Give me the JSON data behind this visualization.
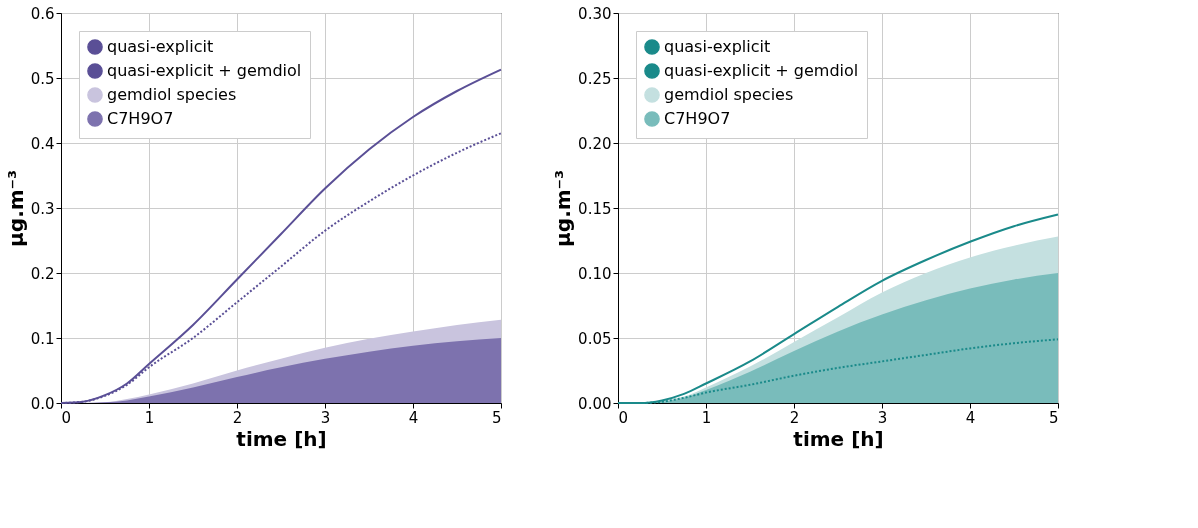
{
  "chart_data": [
    {
      "type": "line",
      "xlabel": "time [h]",
      "ylabel": "μg.m⁻³",
      "xlim": [
        0,
        5
      ],
      "xticks": [
        0,
        1,
        2,
        3,
        4,
        5
      ],
      "ylim": [
        0,
        0.6
      ],
      "yticks": [
        {
          "value": 0,
          "label": "0.0"
        },
        0.1,
        0.2,
        0.3,
        0.4,
        0.5,
        0.6
      ],
      "grid": true,
      "legend": "top left",
      "x": [
        0,
        0.25,
        0.5,
        0.75,
        1,
        1.5,
        2,
        2.5,
        3,
        3.5,
        4,
        4.5,
        5
      ],
      "series": [
        {
          "name": "quasi-explicit",
          "line_style": "dotted",
          "color": "#5a4f96",
          "values": [
            0,
            0.002,
            0.011,
            0.028,
            0.055,
            0.1,
            0.155,
            0.21,
            0.265,
            0.31,
            0.35,
            0.385,
            0.415
          ]
        },
        {
          "name": "quasi-explicit + gemdiol",
          "line_style": "solid",
          "color": "#5a4f96",
          "values": [
            0,
            0.002,
            0.012,
            0.03,
            0.06,
            0.12,
            0.19,
            0.26,
            0.33,
            0.39,
            0.44,
            0.48,
            0.513
          ]
        },
        {
          "name": "gemdiol species",
          "type": "area",
          "color": "#c9c4de",
          "values": [
            0,
            0,
            0.001,
            0.006,
            0.013,
            0.03,
            0.05,
            0.068,
            0.085,
            0.099,
            0.11,
            0.12,
            0.128
          ]
        },
        {
          "name": "C7H9O7",
          "type": "area",
          "color": "#7d72ae",
          "values": [
            0,
            0,
            0.001,
            0.004,
            0.01,
            0.024,
            0.04,
            0.055,
            0.068,
            0.079,
            0.088,
            0.095,
            0.1
          ]
        }
      ]
    },
    {
      "type": "line",
      "xlabel": "time [h]",
      "ylabel": "μg.m⁻³",
      "xlim": [
        0,
        5
      ],
      "xticks": [
        0,
        1,
        2,
        3,
        4,
        5
      ],
      "ylim": [
        0,
        0.3
      ],
      "yticks": [
        {
          "value": 0,
          "label": "0.00"
        },
        0.05,
        {
          "value": 0.1,
          "label": "0.10"
        },
        0.15,
        {
          "value": 0.2,
          "label": "0.20"
        },
        0.25,
        {
          "value": 0.3,
          "label": "0.30"
        }
      ],
      "grid": true,
      "legend": "top left",
      "x": [
        0,
        0.25,
        0.5,
        0.75,
        1,
        1.5,
        2,
        2.5,
        3,
        3.5,
        4,
        4.5,
        5
      ],
      "series": [
        {
          "name": "quasi-explicit",
          "line_style": "dotted",
          "color": "#1a8a8a",
          "values": [
            0,
            0,
            0.001,
            0.004,
            0.008,
            0.014,
            0.021,
            0.027,
            0.032,
            0.037,
            0.042,
            0.046,
            0.049
          ]
        },
        {
          "name": "quasi-explicit + gemdiol",
          "line_style": "solid",
          "color": "#1a8a8a",
          "values": [
            0,
            0,
            0.002,
            0.007,
            0.015,
            0.032,
            0.053,
            0.074,
            0.094,
            0.11,
            0.124,
            0.136,
            0.145
          ]
        },
        {
          "name": "gemdiol species",
          "type": "area",
          "color": "#c4e0e0",
          "values": [
            0,
            0,
            0.002,
            0.005,
            0.012,
            0.028,
            0.047,
            0.066,
            0.085,
            0.1,
            0.112,
            0.121,
            0.128
          ]
        },
        {
          "name": "C7H9O7",
          "type": "area",
          "color": "#79bcbb",
          "values": [
            0,
            0,
            0.001,
            0.004,
            0.01,
            0.024,
            0.04,
            0.055,
            0.068,
            0.079,
            0.088,
            0.095,
            0.1
          ]
        }
      ]
    }
  ]
}
